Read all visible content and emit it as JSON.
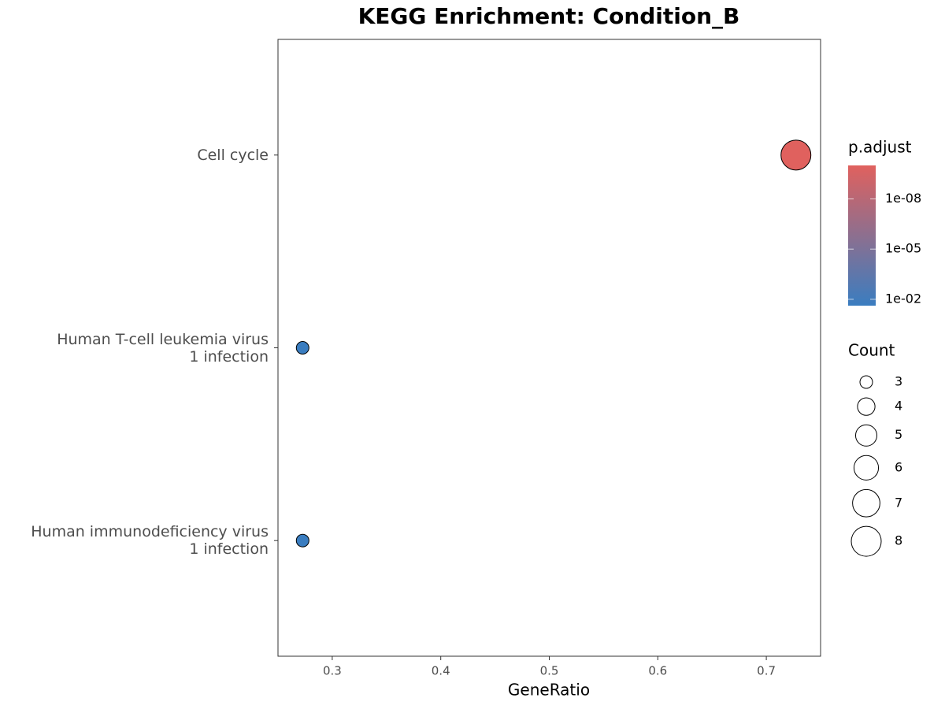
{
  "chart_data": {
    "type": "dot",
    "title": "KEGG Enrichment: Condition_B",
    "x_label": "GeneRatio",
    "categories": [
      "Cell cycle",
      "Human T-cell leukemia virus\n1 infection",
      "Human immunodeficiency virus\n1 infection"
    ],
    "gene_ratio": [
      0.7273,
      0.2727,
      0.2727
    ],
    "count": [
      8,
      3,
      3
    ],
    "p_adjust": [
      1e-10,
      0.024,
      0.024
    ],
    "xlim": [
      0.25,
      0.75
    ],
    "xticks": [
      0.3,
      0.4,
      0.5,
      0.6,
      0.7
    ],
    "color_legend_title": "p.adjust",
    "color_scale": {
      "min_color": "#e0615e",
      "max_color": "#3a7dc0",
      "log": true
    },
    "color_ticks": [
      {
        "value": 1e-08,
        "label": "1e-08"
      },
      {
        "value": 1e-05,
        "label": "1e-05"
      },
      {
        "value": 0.01,
        "label": "1e-02"
      }
    ],
    "size_legend_title": "Count",
    "size_legend": [
      3,
      4,
      5,
      6,
      7,
      8
    ]
  }
}
